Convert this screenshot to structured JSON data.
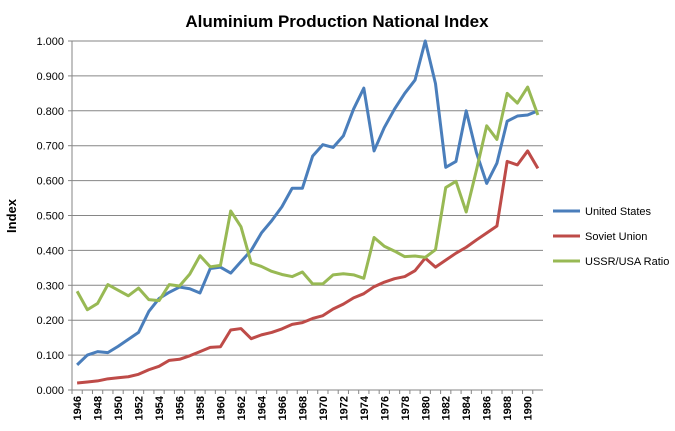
{
  "chart_data": {
    "type": "line",
    "title": "Aluminium Production National Index",
    "xlabel": "",
    "ylabel": "Index",
    "ylim": [
      0,
      1
    ],
    "yticks": [
      "0.000",
      "0.100",
      "0.200",
      "0.300",
      "0.400",
      "0.500",
      "0.600",
      "0.700",
      "0.800",
      "0.900",
      "1.000"
    ],
    "grid": true,
    "legend_position": "right",
    "x": [
      1946,
      1947,
      1948,
      1949,
      1950,
      1951,
      1952,
      1953,
      1954,
      1955,
      1956,
      1957,
      1958,
      1959,
      1960,
      1961,
      1962,
      1963,
      1964,
      1965,
      1966,
      1967,
      1968,
      1969,
      1970,
      1971,
      1972,
      1973,
      1974,
      1975,
      1976,
      1977,
      1978,
      1979,
      1980,
      1981,
      1982,
      1983,
      1984,
      1985,
      1986,
      1987,
      1988,
      1989,
      1990,
      1991
    ],
    "xticks": [
      "1946",
      "1948",
      "1950",
      "1952",
      "1954",
      "1956",
      "1958",
      "1960",
      "1962",
      "1964",
      "1966",
      "1968",
      "1970",
      "1972",
      "1974",
      "1976",
      "1978",
      "1980",
      "1982",
      "1984",
      "1986",
      "1988",
      "1990"
    ],
    "series": [
      {
        "name": "United States",
        "color": "#4a7ebb",
        "values": [
          0.072,
          0.1,
          0.11,
          0.107,
          0.125,
          0.145,
          0.165,
          0.225,
          0.262,
          0.28,
          0.295,
          0.29,
          0.278,
          0.348,
          0.352,
          0.335,
          0.368,
          0.4,
          0.45,
          0.485,
          0.525,
          0.578,
          0.578,
          0.67,
          0.703,
          0.695,
          0.728,
          0.805,
          0.865,
          0.685,
          0.752,
          0.805,
          0.85,
          0.888,
          1.0,
          0.878,
          0.638,
          0.655,
          0.8,
          0.68,
          0.592,
          0.65,
          0.77,
          0.785,
          0.788,
          0.8
        ]
      },
      {
        "name": "Soviet Union",
        "color": "#be4b48",
        "values": [
          0.02,
          0.023,
          0.026,
          0.032,
          0.035,
          0.038,
          0.045,
          0.058,
          0.068,
          0.085,
          0.088,
          0.098,
          0.11,
          0.122,
          0.124,
          0.172,
          0.176,
          0.147,
          0.158,
          0.165,
          0.175,
          0.188,
          0.193,
          0.205,
          0.213,
          0.232,
          0.246,
          0.264,
          0.276,
          0.296,
          0.309,
          0.319,
          0.325,
          0.342,
          0.378,
          0.352,
          0.372,
          0.392,
          0.409,
          0.43,
          0.45,
          0.47,
          0.655,
          0.645,
          0.685,
          0.635
        ]
      },
      {
        "name": "USSR/USA Ratio",
        "color": "#98b954",
        "values": [
          0.283,
          0.23,
          0.248,
          0.302,
          0.286,
          0.27,
          0.292,
          0.259,
          0.256,
          0.302,
          0.298,
          0.332,
          0.385,
          0.353,
          0.357,
          0.513,
          0.468,
          0.364,
          0.354,
          0.34,
          0.331,
          0.325,
          0.338,
          0.304,
          0.304,
          0.33,
          0.333,
          0.33,
          0.32,
          0.437,
          0.412,
          0.398,
          0.382,
          0.384,
          0.38,
          0.402,
          0.58,
          0.598,
          0.51,
          0.63,
          0.757,
          0.718,
          0.85,
          0.822,
          0.868,
          0.788
        ]
      }
    ]
  }
}
